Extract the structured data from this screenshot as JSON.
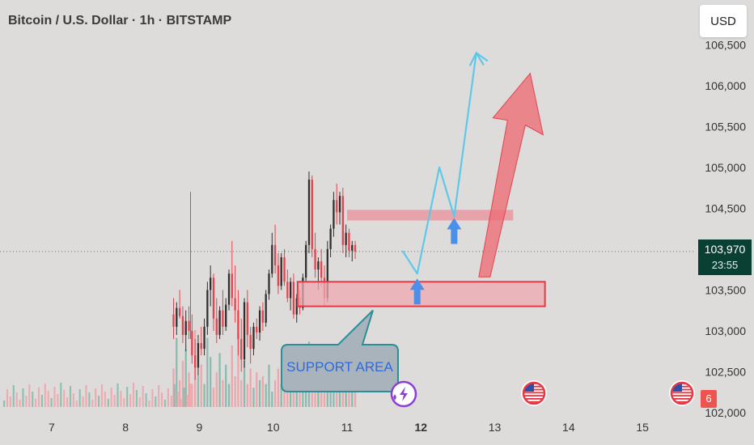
{
  "header": {
    "title": "Bitcoin / U.S. Dollar · 1h · BITSTAMP"
  },
  "toolbar": {
    "currency_label": "USD"
  },
  "price_tag": {
    "price": "103,970",
    "countdown": "23:55"
  },
  "event_badge": {
    "count": "6"
  },
  "annotation": {
    "support_label": "SUPPORT AREA"
  },
  "colors": {
    "background": "#dedcdb",
    "up": "#2f2f2f",
    "down": "#e8414c",
    "zone_fill": "#eeaab0",
    "zone_border": "#e53945",
    "projection_line": "#5dc8e8",
    "arrow_blue": "#4a90e8",
    "arrow_red": "#ec6f78",
    "callout_fill": "#a9b3bc",
    "callout_border": "#2a8f96",
    "callout_text": "#2d6ae0"
  },
  "icons": [
    "lightning-icon",
    "us-flag-icon"
  ],
  "chart_data": {
    "type": "candlestick",
    "x_tick_labels": [
      "7",
      "8",
      "9",
      "10",
      "11",
      "12",
      "13",
      "14",
      "15"
    ],
    "y_tick_labels": [
      "106,500",
      "106,000",
      "105,500",
      "105,000",
      "104,500",
      "103,500",
      "103,000",
      "102,500",
      "102,000"
    ],
    "ylim": [
      101950,
      106750
    ],
    "x_axis_unit": "day",
    "xlim": [
      6.3,
      15.7
    ],
    "current_price": 103970,
    "candles_start_x": 8.65,
    "candle_interval_days": 0.0417,
    "ohlc": [
      [
        103200,
        103400,
        102900,
        103050
      ],
      [
        103050,
        103350,
        102950,
        103280
      ],
      [
        103280,
        103500,
        103150,
        103180
      ],
      [
        103180,
        103300,
        102850,
        102950
      ],
      [
        102950,
        103250,
        102750,
        103120
      ],
      [
        103120,
        103300,
        102900,
        103000
      ],
      [
        103000,
        103200,
        102600,
        102700
      ],
      [
        102700,
        102900,
        102400,
        102550
      ],
      [
        102550,
        102950,
        102450,
        102850
      ],
      [
        102850,
        103050,
        102700,
        102780
      ],
      [
        102780,
        103150,
        102700,
        103050
      ],
      [
        103050,
        103600,
        102950,
        103500
      ],
      [
        103500,
        103800,
        103300,
        103650
      ],
      [
        103650,
        103700,
        103000,
        103150
      ],
      [
        103150,
        103400,
        102850,
        102950
      ],
      [
        102950,
        103300,
        102900,
        103250
      ],
      [
        103250,
        103500,
        102950,
        103050
      ],
      [
        103050,
        103400,
        103000,
        103320
      ],
      [
        103320,
        103750,
        103250,
        103700
      ],
      [
        103700,
        104100,
        103300,
        103400
      ],
      [
        103400,
        103800,
        103100,
        103250
      ],
      [
        103250,
        103500,
        102700,
        102900
      ],
      [
        102900,
        103150,
        102500,
        102650
      ],
      [
        102650,
        103400,
        102550,
        103350
      ],
      [
        103350,
        103500,
        102800,
        102950
      ],
      [
        102950,
        103050,
        102600,
        102780
      ],
      [
        102780,
        103100,
        102700,
        103050
      ],
      [
        103050,
        103150,
        102900,
        102980
      ],
      [
        102980,
        103300,
        102880,
        103250
      ],
      [
        103250,
        103350,
        103000,
        103100
      ],
      [
        103100,
        103500,
        103050,
        103450
      ],
      [
        103450,
        103750,
        103380,
        103700
      ],
      [
        103700,
        104200,
        103650,
        104050
      ],
      [
        104050,
        104300,
        103700,
        103800
      ],
      [
        103800,
        103950,
        103450,
        103550
      ],
      [
        103550,
        103950,
        103500,
        103900
      ],
      [
        103900,
        104000,
        103550,
        103600
      ],
      [
        103600,
        103750,
        103350,
        103400
      ],
      [
        103400,
        103650,
        103250,
        103600
      ],
      [
        103600,
        103700,
        103150,
        103200
      ],
      [
        103200,
        103450,
        103100,
        103400
      ],
      [
        103400,
        103500,
        103200,
        103280
      ],
      [
        103280,
        103700,
        103250,
        103650
      ],
      [
        103650,
        104100,
        103600,
        104050
      ],
      [
        104050,
        104950,
        103950,
        104850
      ],
      [
        104850,
        104900,
        103900,
        104000
      ],
      [
        104000,
        104200,
        103650,
        103750
      ],
      [
        103750,
        103900,
        103500,
        103850
      ],
      [
        103850,
        104000,
        103550,
        103650
      ],
      [
        103650,
        103800,
        103300,
        103400
      ],
      [
        103400,
        104100,
        103350,
        104000
      ],
      [
        104000,
        104300,
        103900,
        104250
      ],
      [
        104250,
        104700,
        104150,
        104600
      ],
      [
        104600,
        104800,
        104300,
        104450
      ],
      [
        104450,
        104700,
        104300,
        104650
      ],
      [
        104650,
        104750,
        103950,
        104050
      ],
      [
        104050,
        104300,
        103900,
        104200
      ],
      [
        104200,
        104250,
        103900,
        103980
      ],
      [
        103980,
        104100,
        103850,
        104050
      ],
      [
        104050,
        104100,
        103880,
        103970
      ]
    ],
    "volume_relative": [
      0.5,
      0.9,
      0.35,
      0.6,
      0.75,
      0.45,
      0.3,
      1.0,
      0.4,
      0.55,
      0.3,
      0.9,
      0.65,
      0.25,
      0.45,
      0.7,
      0.35,
      0.55,
      0.3,
      0.8,
      0.4,
      0.95,
      0.35,
      0.6,
      0.3,
      0.5,
      0.25,
      0.45,
      0.35,
      0.4,
      0.3,
      0.55,
      0.2,
      0.35,
      0.5,
      0.3,
      0.45,
      0.25,
      0.3,
      0.4,
      0.2,
      0.35,
      0.3,
      0.6,
      0.85,
      0.4,
      0.3,
      0.5,
      0.25,
      0.35,
      0.3,
      0.4,
      0.25,
      0.3,
      0.2,
      0.35,
      0.25,
      0.3,
      0.2,
      0.25
    ],
    "drawings": {
      "resistance_zone": {
        "x": [
          11.0,
          13.25
        ],
        "y": [
          104350,
          104480
        ]
      },
      "support_zone": {
        "x": [
          10.33,
          13.68
        ],
        "y": [
          103300,
          103600
        ]
      },
      "projection_path": [
        [
          11.75,
          103980
        ],
        [
          11.95,
          103700
        ],
        [
          12.25,
          105000
        ],
        [
          12.45,
          104400
        ],
        [
          12.75,
          106400
        ],
        [
          12.85,
          106250
        ]
      ],
      "blue_arrows": [
        {
          "x": 11.95,
          "y_tip": 103640
        },
        {
          "x": 12.45,
          "y_tip": 104380
        }
      ],
      "red_arrow": {
        "base_x": 12.85,
        "base_y": 103660,
        "tip_x": 13.48,
        "tip_y": 106150
      }
    }
  }
}
